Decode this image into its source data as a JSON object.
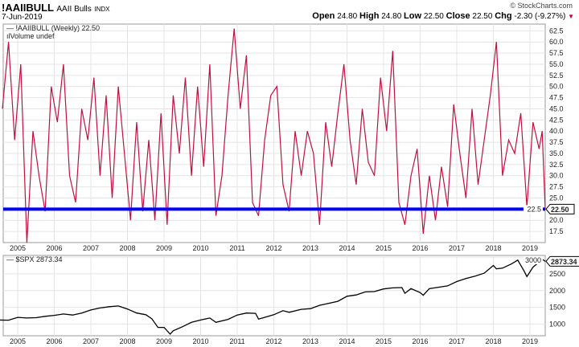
{
  "header": {
    "symbol": "!AAIIBULL",
    "name": "AAII Bulls",
    "exchange": "INDX",
    "date": "7-Jun-2019",
    "brand": "© StockCharts.com",
    "open_label": "Open",
    "open": "24.80",
    "high_label": "High",
    "high": "24.80",
    "low_label": "Low",
    "low": "22.50",
    "close_label": "Close",
    "close": "22.50",
    "chg_label": "Chg",
    "chg": "-2.30 (-9.27%)",
    "chg_color": "#c00030"
  },
  "chart_data": [
    {
      "type": "line",
      "legend": "!AAIIBULL (Weekly) 22.50",
      "legend2": "Volume undef",
      "color": "#c01040",
      "ylim": [
        15,
        64
      ],
      "yticks": [
        17.5,
        20.0,
        22.5,
        25.0,
        27.5,
        30.0,
        32.5,
        35.0,
        37.5,
        40.0,
        42.5,
        45.0,
        47.5,
        50.0,
        52.5,
        55.0,
        57.5,
        60.0,
        62.5
      ],
      "xticks": [
        "2005",
        "2006",
        "2007",
        "2008",
        "2009",
        "2010",
        "2011",
        "2012",
        "2013",
        "2014",
        "2015",
        "2016",
        "2017",
        "2018",
        "2019"
      ],
      "last_value_label": "22.50",
      "horizontal_line": {
        "value": 22.5,
        "color": "#0000ff"
      },
      "points": [
        [
          "2004-08",
          45
        ],
        [
          "2004-10",
          60
        ],
        [
          "2004-12",
          38
        ],
        [
          "2005-02",
          55
        ],
        [
          "2005-04",
          15
        ],
        [
          "2005-06",
          40
        ],
        [
          "2005-08",
          30
        ],
        [
          "2005-10",
          22
        ],
        [
          "2005-12",
          50
        ],
        [
          "2006-02",
          42
        ],
        [
          "2006-04",
          55
        ],
        [
          "2006-06",
          30
        ],
        [
          "2006-08",
          24
        ],
        [
          "2006-10",
          45
        ],
        [
          "2006-12",
          38
        ],
        [
          "2007-02",
          52
        ],
        [
          "2007-04",
          30
        ],
        [
          "2007-06",
          48
        ],
        [
          "2007-08",
          25
        ],
        [
          "2007-10",
          50
        ],
        [
          "2007-12",
          35
        ],
        [
          "2008-02",
          20
        ],
        [
          "2008-04",
          42
        ],
        [
          "2008-06",
          22
        ],
        [
          "2008-08",
          38
        ],
        [
          "2008-10",
          20
        ],
        [
          "2008-12",
          44
        ],
        [
          "2009-02",
          19
        ],
        [
          "2009-04",
          48
        ],
        [
          "2009-06",
          35
        ],
        [
          "2009-08",
          52
        ],
        [
          "2009-10",
          30
        ],
        [
          "2009-12",
          50
        ],
        [
          "2010-02",
          32
        ],
        [
          "2010-04",
          55
        ],
        [
          "2010-06",
          21
        ],
        [
          "2010-08",
          30
        ],
        [
          "2010-10",
          48
        ],
        [
          "2010-12",
          63
        ],
        [
          "2011-02",
          45
        ],
        [
          "2011-04",
          57
        ],
        [
          "2011-06",
          24
        ],
        [
          "2011-08",
          21
        ],
        [
          "2011-10",
          38
        ],
        [
          "2011-12",
          48
        ],
        [
          "2012-02",
          50
        ],
        [
          "2012-04",
          28
        ],
        [
          "2012-06",
          22
        ],
        [
          "2012-08",
          40
        ],
        [
          "2012-10",
          30
        ],
        [
          "2012-12",
          40
        ],
        [
          "2013-02",
          35
        ],
        [
          "2013-04",
          19
        ],
        [
          "2013-06",
          42
        ],
        [
          "2013-08",
          32
        ],
        [
          "2013-10",
          44
        ],
        [
          "2013-12",
          55
        ],
        [
          "2014-02",
          38
        ],
        [
          "2014-04",
          28
        ],
        [
          "2014-06",
          45
        ],
        [
          "2014-08",
          33
        ],
        [
          "2014-10",
          30
        ],
        [
          "2014-12",
          52
        ],
        [
          "2015-02",
          40
        ],
        [
          "2015-04",
          58
        ],
        [
          "2015-06",
          24
        ],
        [
          "2015-08",
          19
        ],
        [
          "2015-10",
          30
        ],
        [
          "2015-12",
          36
        ],
        [
          "2016-02",
          17
        ],
        [
          "2016-04",
          30
        ],
        [
          "2016-06",
          20
        ],
        [
          "2016-08",
          32
        ],
        [
          "2016-10",
          23
        ],
        [
          "2016-12",
          46
        ],
        [
          "2017-02",
          35
        ],
        [
          "2017-04",
          25
        ],
        [
          "2017-06",
          45
        ],
        [
          "2017-08",
          28
        ],
        [
          "2017-10",
          38
        ],
        [
          "2017-12",
          48
        ],
        [
          "2018-02",
          60
        ],
        [
          "2018-04",
          30
        ],
        [
          "2018-06",
          38
        ],
        [
          "2018-08",
          35
        ],
        [
          "2018-10",
          44
        ],
        [
          "2018-12",
          23
        ],
        [
          "2019-02",
          42
        ],
        [
          "2019-04",
          36
        ],
        [
          "2019-05",
          40
        ],
        [
          "2019-06",
          22.5
        ]
      ]
    },
    {
      "type": "line",
      "legend": "$SPX 2873.34",
      "color": "#000000",
      "ylim": [
        650,
        3050
      ],
      "yticks": [
        1000,
        1500,
        2000,
        2500,
        3000
      ],
      "xticks": [
        "2005",
        "2006",
        "2007",
        "2008",
        "2009",
        "2010",
        "2011",
        "2012",
        "2013",
        "2014",
        "2015",
        "2016",
        "2017",
        "2018",
        "2019"
      ],
      "last_value_label": "2873.34",
      "points": [
        [
          "2004-07",
          1120
        ],
        [
          "2004-10",
          1115
        ],
        [
          "2005-01",
          1200
        ],
        [
          "2005-04",
          1180
        ],
        [
          "2005-07",
          1190
        ],
        [
          "2005-10",
          1230
        ],
        [
          "2006-01",
          1260
        ],
        [
          "2006-04",
          1300
        ],
        [
          "2006-07",
          1270
        ],
        [
          "2006-10",
          1330
        ],
        [
          "2007-01",
          1420
        ],
        [
          "2007-04",
          1480
        ],
        [
          "2007-07",
          1520
        ],
        [
          "2007-10",
          1540
        ],
        [
          "2008-01",
          1450
        ],
        [
          "2008-04",
          1330
        ],
        [
          "2008-07",
          1280
        ],
        [
          "2008-09",
          1160
        ],
        [
          "2008-11",
          900
        ],
        [
          "2009-01",
          900
        ],
        [
          "2009-03",
          700
        ],
        [
          "2009-04",
          800
        ],
        [
          "2009-07",
          920
        ],
        [
          "2009-10",
          1050
        ],
        [
          "2010-01",
          1120
        ],
        [
          "2010-04",
          1180
        ],
        [
          "2010-06",
          1050
        ],
        [
          "2010-10",
          1140
        ],
        [
          "2011-01",
          1270
        ],
        [
          "2011-04",
          1330
        ],
        [
          "2011-07",
          1320
        ],
        [
          "2011-08",
          1150
        ],
        [
          "2011-10",
          1200
        ],
        [
          "2012-01",
          1280
        ],
        [
          "2012-04",
          1400
        ],
        [
          "2012-06",
          1350
        ],
        [
          "2012-10",
          1440
        ],
        [
          "2013-01",
          1460
        ],
        [
          "2013-04",
          1560
        ],
        [
          "2013-07",
          1620
        ],
        [
          "2013-10",
          1680
        ],
        [
          "2014-01",
          1830
        ],
        [
          "2014-04",
          1870
        ],
        [
          "2014-07",
          1960
        ],
        [
          "2014-10",
          1970
        ],
        [
          "2015-01",
          2050
        ],
        [
          "2015-04",
          2080
        ],
        [
          "2015-07",
          2090
        ],
        [
          "2015-08",
          1920
        ],
        [
          "2015-10",
          2060
        ],
        [
          "2016-01",
          1940
        ],
        [
          "2016-02",
          1860
        ],
        [
          "2016-04",
          2060
        ],
        [
          "2016-07",
          2100
        ],
        [
          "2016-10",
          2140
        ],
        [
          "2017-01",
          2270
        ],
        [
          "2017-04",
          2360
        ],
        [
          "2017-07",
          2430
        ],
        [
          "2017-10",
          2520
        ],
        [
          "2018-01",
          2750
        ],
        [
          "2018-02",
          2650
        ],
        [
          "2018-04",
          2670
        ],
        [
          "2018-07",
          2800
        ],
        [
          "2018-09",
          2910
        ],
        [
          "2018-11",
          2600
        ],
        [
          "2018-12",
          2420
        ],
        [
          "2019-02",
          2700
        ],
        [
          "2019-04",
          2850
        ],
        [
          "2019-05",
          2940
        ],
        [
          "2019-06",
          2873.34
        ]
      ]
    }
  ]
}
